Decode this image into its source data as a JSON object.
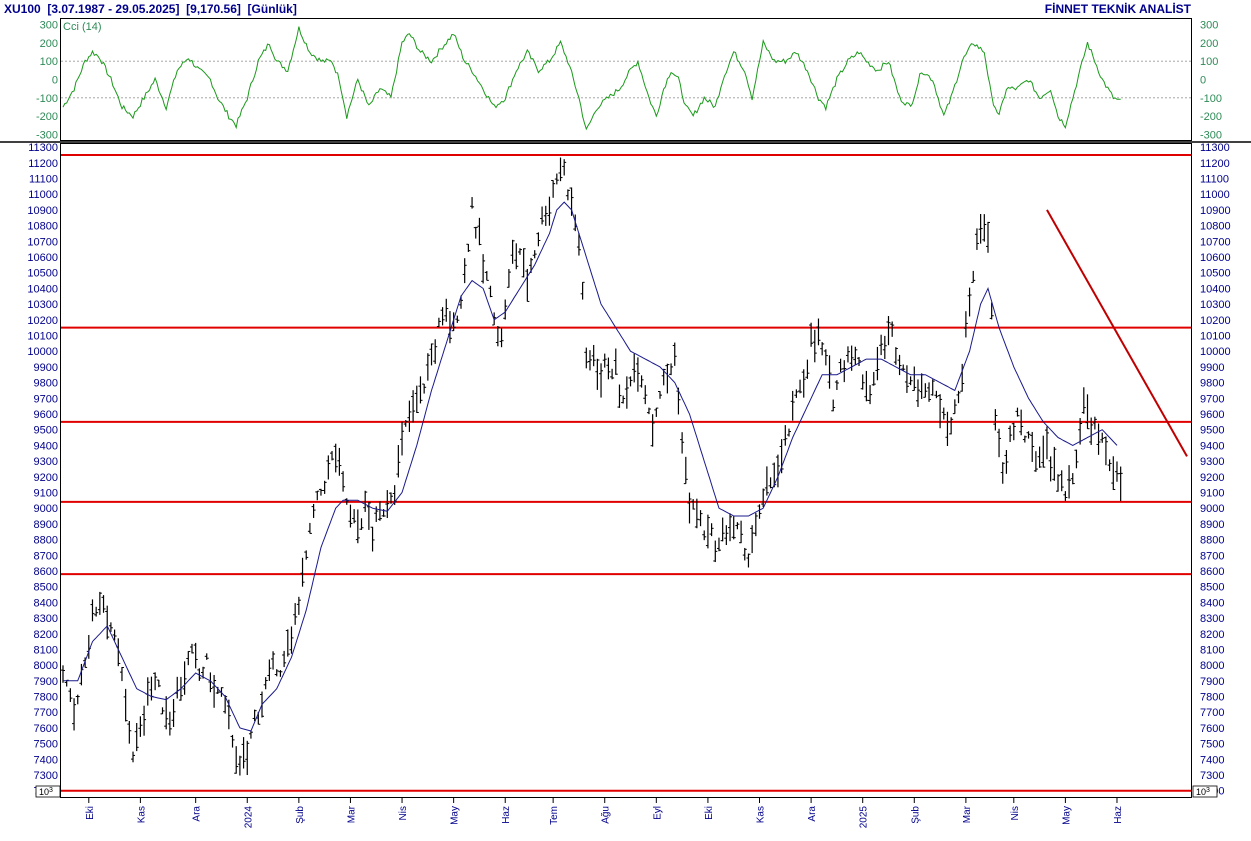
{
  "header": {
    "symbol": "XU100",
    "range": "[3.07.1987 - 29.05.2025]",
    "last": "[9,170.56]",
    "period": "[Günlük]",
    "brand": "FİNNET TEKNİK ANALİST"
  },
  "cci_panel": {
    "label": "Cci (14)",
    "ticks": [
      300,
      200,
      100,
      0,
      -100,
      -200,
      -300
    ],
    "ylim": [
      -330,
      330
    ],
    "reference_levels": [
      100,
      -100
    ],
    "color": "#1a9a1a"
  },
  "price_panel": {
    "ticks": [
      11300,
      11200,
      11100,
      11000,
      10900,
      10800,
      10700,
      10600,
      10500,
      10400,
      10300,
      10200,
      10100,
      10000,
      9900,
      9800,
      9700,
      9600,
      9500,
      9400,
      9300,
      9200,
      9100,
      9000,
      8900,
      8800,
      8700,
      8600,
      8500,
      8400,
      8300,
      8200,
      8100,
      8000,
      7900,
      7800,
      7700,
      7600,
      7500,
      7400,
      7300,
      7200
    ],
    "ylim": [
      7160,
      11320
    ],
    "scale_label": "10^3",
    "bar_color": "#000000",
    "ma_color": "#1a1a8c",
    "horizontal_levels": [
      11250,
      10150,
      9550,
      9040,
      8580,
      7200
    ],
    "level_color": "#e00000",
    "trendline": {
      "from": {
        "day": 267,
        "price": 10900
      },
      "to": {
        "day": 305,
        "price": 9330
      },
      "color": "#c00000"
    }
  },
  "x_axis": {
    "months": [
      {
        "label": "Eki",
        "day": 7
      },
      {
        "label": "Kas",
        "day": 21
      },
      {
        "label": "Ara",
        "day": 36
      },
      {
        "label": "2024",
        "day": 50
      },
      {
        "label": "Şub",
        "day": 64
      },
      {
        "label": "Mar",
        "day": 78
      },
      {
        "label": "Nis",
        "day": 92
      },
      {
        "label": "May",
        "day": 106
      },
      {
        "label": "Haz",
        "day": 120
      },
      {
        "label": "Tem",
        "day": 133
      },
      {
        "label": "Ağu",
        "day": 147
      },
      {
        "label": "Eyl",
        "day": 161
      },
      {
        "label": "Eki",
        "day": 175
      },
      {
        "label": "Kas",
        "day": 189
      },
      {
        "label": "Ara",
        "day": 203
      },
      {
        "label": "2025",
        "day": 217
      },
      {
        "label": "Şub",
        "day": 231
      },
      {
        "label": "Mar",
        "day": 245
      },
      {
        "label": "Nis",
        "day": 258
      },
      {
        "label": "May",
        "day": 272
      },
      {
        "label": "Haz",
        "day": 286
      }
    ]
  },
  "chart_data": {
    "type": "bar",
    "title": "XU100",
    "days": 305,
    "price_anchors": [
      [
        0,
        7900
      ],
      [
        3,
        7700
      ],
      [
        6,
        8050
      ],
      [
        8,
        8300
      ],
      [
        10,
        8450
      ],
      [
        12,
        8350
      ],
      [
        14,
        8150
      ],
      [
        16,
        7900
      ],
      [
        18,
        7600
      ],
      [
        19,
        7450
      ],
      [
        21,
        7550
      ],
      [
        23,
        7850
      ],
      [
        25,
        7900
      ],
      [
        27,
        7750
      ],
      [
        29,
        7650
      ],
      [
        31,
        7850
      ],
      [
        33,
        7950
      ],
      [
        35,
        8050
      ],
      [
        37,
        7950
      ],
      [
        39,
        8000
      ],
      [
        41,
        7850
      ],
      [
        43,
        7800
      ],
      [
        45,
        7650
      ],
      [
        47,
        7450
      ],
      [
        48,
        7300
      ],
      [
        50,
        7450
      ],
      [
        52,
        7650
      ],
      [
        54,
        7800
      ],
      [
        56,
        7900
      ],
      [
        58,
        8000
      ],
      [
        60,
        8000
      ],
      [
        62,
        8150
      ],
      [
        64,
        8450
      ],
      [
        66,
        8700
      ],
      [
        68,
        8950
      ],
      [
        70,
        9100
      ],
      [
        72,
        9250
      ],
      [
        74,
        9350
      ],
      [
        76,
        9150
      ],
      [
        78,
        8950
      ],
      [
        80,
        8900
      ],
      [
        82,
        9000
      ],
      [
        84,
        8850
      ],
      [
        86,
        8950
      ],
      [
        88,
        9050
      ],
      [
        90,
        9150
      ],
      [
        92,
        9400
      ],
      [
        94,
        9600
      ],
      [
        96,
        9700
      ],
      [
        98,
        9800
      ],
      [
        100,
        9950
      ],
      [
        102,
        10150
      ],
      [
        104,
        10250
      ],
      [
        106,
        10150
      ],
      [
        108,
        10350
      ],
      [
        110,
        10700
      ],
      [
        111,
        10950
      ],
      [
        112,
        10800
      ],
      [
        114,
        10550
      ],
      [
        116,
        10350
      ],
      [
        118,
        10150
      ],
      [
        119,
        10050
      ],
      [
        120,
        10300
      ],
      [
        122,
        10600
      ],
      [
        124,
        10650
      ],
      [
        126,
        10450
      ],
      [
        128,
        10650
      ],
      [
        130,
        10850
      ],
      [
        132,
        10950
      ],
      [
        134,
        11100
      ],
      [
        135,
        11200
      ],
      [
        136,
        11150
      ],
      [
        138,
        10950
      ],
      [
        140,
        10700
      ],
      [
        141,
        10400
      ],
      [
        142,
        9900
      ],
      [
        144,
        10000
      ],
      [
        146,
        9850
      ],
      [
        148,
        9950
      ],
      [
        150,
        9850
      ],
      [
        152,
        9650
      ],
      [
        154,
        9850
      ],
      [
        156,
        9950
      ],
      [
        158,
        9750
      ],
      [
        160,
        9550
      ],
      [
        162,
        9750
      ],
      [
        164,
        9850
      ],
      [
        166,
        9950
      ],
      [
        167,
        9700
      ],
      [
        168,
        9400
      ],
      [
        170,
        9050
      ],
      [
        172,
        8950
      ],
      [
        174,
        8850
      ],
      [
        176,
        8800
      ],
      [
        178,
        8750
      ],
      [
        180,
        8850
      ],
      [
        182,
        8900
      ],
      [
        184,
        8800
      ],
      [
        185,
        8650
      ],
      [
        187,
        8800
      ],
      [
        189,
        8950
      ],
      [
        191,
        9100
      ],
      [
        193,
        9250
      ],
      [
        195,
        9300
      ],
      [
        197,
        9500
      ],
      [
        199,
        9700
      ],
      [
        201,
        9850
      ],
      [
        203,
        10050
      ],
      [
        205,
        10100
      ],
      [
        207,
        9900
      ],
      [
        209,
        9700
      ],
      [
        211,
        9900
      ],
      [
        213,
        10000
      ],
      [
        215,
        9950
      ],
      [
        217,
        9850
      ],
      [
        219,
        9750
      ],
      [
        221,
        9950
      ],
      [
        223,
        10050
      ],
      [
        225,
        10100
      ],
      [
        227,
        9950
      ],
      [
        229,
        9850
      ],
      [
        231,
        9800
      ],
      [
        233,
        9800
      ],
      [
        235,
        9750
      ],
      [
        237,
        9700
      ],
      [
        239,
        9650
      ],
      [
        241,
        9550
      ],
      [
        243,
        9700
      ],
      [
        244,
        9900
      ],
      [
        246,
        10300
      ],
      [
        248,
        10700
      ],
      [
        250,
        10850
      ],
      [
        251,
        10750
      ],
      [
        252,
        10200
      ],
      [
        253,
        9550
      ],
      [
        255,
        9200
      ],
      [
        257,
        9450
      ],
      [
        259,
        9600
      ],
      [
        261,
        9450
      ],
      [
        263,
        9350
      ],
      [
        265,
        9350
      ],
      [
        267,
        9400
      ],
      [
        269,
        9250
      ],
      [
        271,
        9150
      ],
      [
        273,
        9100
      ],
      [
        275,
        9350
      ],
      [
        277,
        9650
      ],
      [
        279,
        9550
      ],
      [
        281,
        9450
      ],
      [
        283,
        9350
      ],
      [
        285,
        9250
      ],
      [
        287,
        9170
      ]
    ],
    "ma_anchors": [
      [
        0,
        7900
      ],
      [
        4,
        7900
      ],
      [
        8,
        8150
      ],
      [
        12,
        8250
      ],
      [
        16,
        8050
      ],
      [
        20,
        7850
      ],
      [
        24,
        7800
      ],
      [
        28,
        7780
      ],
      [
        32,
        7850
      ],
      [
        36,
        7950
      ],
      [
        40,
        7900
      ],
      [
        44,
        7800
      ],
      [
        48,
        7600
      ],
      [
        51,
        7580
      ],
      [
        54,
        7750
      ],
      [
        58,
        7850
      ],
      [
        62,
        8050
      ],
      [
        66,
        8350
      ],
      [
        70,
        8750
      ],
      [
        74,
        9000
      ],
      [
        76,
        9050
      ],
      [
        80,
        9050
      ],
      [
        84,
        9000
      ],
      [
        88,
        8980
      ],
      [
        92,
        9100
      ],
      [
        96,
        9400
      ],
      [
        100,
        9750
      ],
      [
        104,
        10050
      ],
      [
        108,
        10350
      ],
      [
        111,
        10450
      ],
      [
        114,
        10400
      ],
      [
        117,
        10200
      ],
      [
        120,
        10250
      ],
      [
        124,
        10400
      ],
      [
        128,
        10550
      ],
      [
        132,
        10750
      ],
      [
        134,
        10900
      ],
      [
        136,
        10950
      ],
      [
        138,
        10900
      ],
      [
        142,
        10600
      ],
      [
        146,
        10300
      ],
      [
        150,
        10150
      ],
      [
        154,
        10000
      ],
      [
        158,
        9950
      ],
      [
        162,
        9900
      ],
      [
        166,
        9800
      ],
      [
        170,
        9600
      ],
      [
        174,
        9300
      ],
      [
        178,
        9000
      ],
      [
        182,
        8950
      ],
      [
        186,
        8950
      ],
      [
        190,
        9000
      ],
      [
        194,
        9200
      ],
      [
        198,
        9450
      ],
      [
        202,
        9650
      ],
      [
        206,
        9850
      ],
      [
        210,
        9850
      ],
      [
        214,
        9900
      ],
      [
        218,
        9950
      ],
      [
        222,
        9950
      ],
      [
        226,
        9900
      ],
      [
        230,
        9850
      ],
      [
        234,
        9850
      ],
      [
        238,
        9800
      ],
      [
        242,
        9750
      ],
      [
        246,
        10000
      ],
      [
        249,
        10300
      ],
      [
        251,
        10400
      ],
      [
        254,
        10150
      ],
      [
        258,
        9900
      ],
      [
        262,
        9700
      ],
      [
        266,
        9550
      ],
      [
        270,
        9450
      ],
      [
        274,
        9400
      ],
      [
        278,
        9450
      ],
      [
        282,
        9500
      ],
      [
        286,
        9400
      ]
    ],
    "cci_anchors": [
      [
        0,
        -150
      ],
      [
        3,
        -50
      ],
      [
        6,
        100
      ],
      [
        8,
        150
      ],
      [
        10,
        120
      ],
      [
        13,
        0
      ],
      [
        16,
        -150
      ],
      [
        19,
        -200
      ],
      [
        22,
        -100
      ],
      [
        25,
        0
      ],
      [
        28,
        -150
      ],
      [
        31,
        50
      ],
      [
        34,
        120
      ],
      [
        37,
        50
      ],
      [
        40,
        0
      ],
      [
        42,
        -100
      ],
      [
        45,
        -200
      ],
      [
        47,
        -250
      ],
      [
        50,
        -100
      ],
      [
        53,
        100
      ],
      [
        56,
        200
      ],
      [
        58,
        100
      ],
      [
        61,
        50
      ],
      [
        64,
        280
      ],
      [
        67,
        150
      ],
      [
        70,
        100
      ],
      [
        73,
        100
      ],
      [
        75,
        0
      ],
      [
        77,
        -200
      ],
      [
        80,
        0
      ],
      [
        83,
        -150
      ],
      [
        86,
        -50
      ],
      [
        89,
        -100
      ],
      [
        92,
        200
      ],
      [
        94,
        250
      ],
      [
        97,
        150
      ],
      [
        100,
        100
      ],
      [
        103,
        180
      ],
      [
        106,
        250
      ],
      [
        109,
        100
      ],
      [
        111,
        50
      ],
      [
        114,
        -50
      ],
      [
        117,
        -150
      ],
      [
        120,
        -100
      ],
      [
        123,
        50
      ],
      [
        126,
        150
      ],
      [
        129,
        50
      ],
      [
        132,
        100
      ],
      [
        135,
        200
      ],
      [
        137,
        100
      ],
      [
        140,
        -100
      ],
      [
        142,
        -280
      ],
      [
        145,
        -150
      ],
      [
        148,
        -100
      ],
      [
        151,
        -50
      ],
      [
        154,
        50
      ],
      [
        156,
        100
      ],
      [
        159,
        -100
      ],
      [
        161,
        -200
      ],
      [
        163,
        -50
      ],
      [
        165,
        50
      ],
      [
        167,
        0
      ],
      [
        169,
        -150
      ],
      [
        171,
        -200
      ],
      [
        174,
        -100
      ],
      [
        177,
        -150
      ],
      [
        179,
        0
      ],
      [
        182,
        150
      ],
      [
        185,
        50
      ],
      [
        187,
        -100
      ],
      [
        190,
        200
      ],
      [
        193,
        100
      ],
      [
        196,
        100
      ],
      [
        199,
        150
      ],
      [
        202,
        50
      ],
      [
        205,
        -100
      ],
      [
        207,
        -150
      ],
      [
        210,
        0
      ],
      [
        213,
        100
      ],
      [
        216,
        150
      ],
      [
        218,
        100
      ],
      [
        221,
        50
      ],
      [
        224,
        100
      ],
      [
        227,
        -100
      ],
      [
        230,
        -150
      ],
      [
        233,
        50
      ],
      [
        236,
        0
      ],
      [
        239,
        -200
      ],
      [
        241,
        -100
      ],
      [
        244,
        100
      ],
      [
        247,
        200
      ],
      [
        250,
        150
      ],
      [
        252,
        -100
      ],
      [
        254,
        -200
      ],
      [
        256,
        -50
      ],
      [
        259,
        -50
      ],
      [
        262,
        0
      ],
      [
        265,
        -100
      ],
      [
        268,
        -50
      ],
      [
        270,
        -200
      ],
      [
        272,
        -250
      ],
      [
        274,
        -100
      ],
      [
        276,
        50
      ],
      [
        278,
        200
      ],
      [
        280,
        100
      ],
      [
        282,
        0
      ],
      [
        285,
        -100
      ],
      [
        287,
        -120
      ]
    ]
  }
}
